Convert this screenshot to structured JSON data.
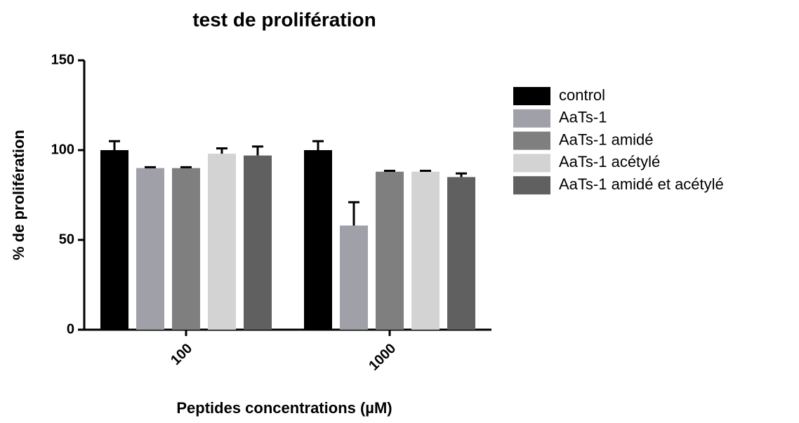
{
  "chart_data": {
    "type": "bar",
    "title": "test de prolifération",
    "xlabel": "Peptides concentrations (µM)",
    "ylabel": "% de prolifération",
    "categories": [
      "100",
      "1000"
    ],
    "series": [
      {
        "name": "control",
        "color": "#000000",
        "values": [
          100,
          100
        ],
        "errors": [
          5,
          5
        ]
      },
      {
        "name": "AaTs-1",
        "color": "#a0a0a8",
        "values": [
          90,
          58
        ],
        "errors": [
          0.5,
          13
        ]
      },
      {
        "name": "AaTs-1 amidé",
        "color": "#7f7f7f",
        "values": [
          90,
          88
        ],
        "errors": [
          0.5,
          0.5
        ]
      },
      {
        "name": "AaTs-1 acétylé",
        "color": "#d3d3d3",
        "values": [
          98,
          88
        ],
        "errors": [
          3,
          0.5
        ]
      },
      {
        "name": "AaTs-1 amidé et acétylé",
        "color": "#606060",
        "values": [
          97,
          85
        ],
        "errors": [
          5,
          2
        ]
      }
    ],
    "ylim": [
      0,
      150
    ],
    "yticks": [
      0,
      50,
      100,
      150
    ],
    "legend": "right"
  }
}
